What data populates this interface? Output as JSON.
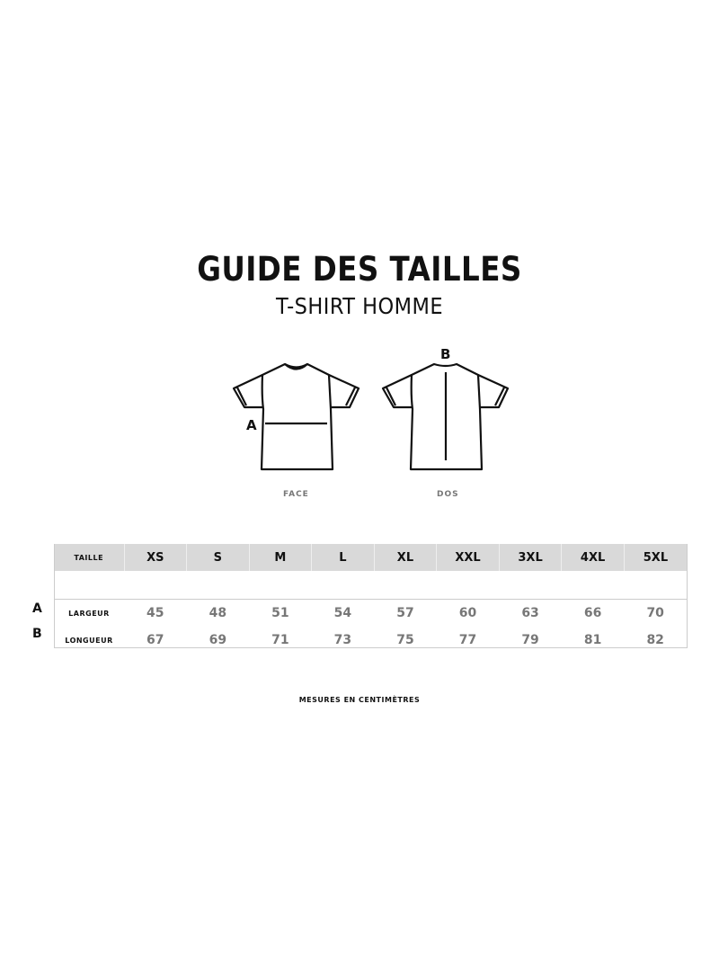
{
  "title": "GUIDE DES TAILLES",
  "subtitle": "T-SHIRT HOMME",
  "illustrations": {
    "front_label": "FACE",
    "back_label": "DOS",
    "front_marker": "A",
    "back_marker": "B"
  },
  "table": {
    "header_label": "TAILLE",
    "sizes": [
      "XS",
      "S",
      "M",
      "L",
      "XL",
      "XXL",
      "3XL",
      "4XL",
      "5XL"
    ],
    "rows": [
      {
        "letter": "A",
        "label": "LARGEUR",
        "values": [
          "45",
          "48",
          "51",
          "54",
          "57",
          "60",
          "63",
          "66",
          "70"
        ]
      },
      {
        "letter": "B",
        "label": "LONGUEUR",
        "values": [
          "67",
          "69",
          "71",
          "73",
          "75",
          "77",
          "79",
          "81",
          "82"
        ]
      }
    ]
  },
  "note": "MESURES EN CENTIMÈTRES"
}
